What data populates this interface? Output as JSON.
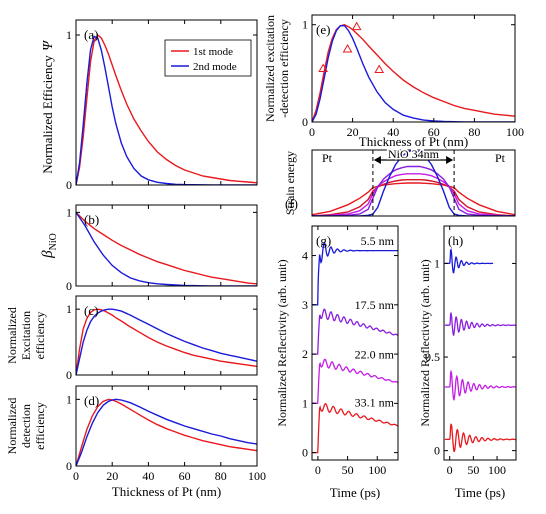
{
  "colors": {
    "red": "#e8191e",
    "blue": "#1a1ad9",
    "purple": "#8a1ee0",
    "magenta": "#c41ee6",
    "dark_red": "#d4142a"
  },
  "common": {
    "x_label": "Thickness of Pt (nm)",
    "time_label": "Time (ps)"
  },
  "chart_data": [
    {
      "id": "a",
      "type": "line",
      "panel_label": "(a)",
      "ylabel": "Normalized  Efficiency",
      "ylabel_symbol": "Ψ",
      "xlim": [
        0,
        100
      ],
      "ylim": [
        0,
        1.1
      ],
      "xticks": [
        "0",
        "20",
        "40",
        "60",
        "80",
        "100"
      ],
      "yticks": [
        "0",
        "1"
      ],
      "legend": {
        "placement": "top-right",
        "entries": [
          "1st mode",
          "2nd mode"
        ]
      },
      "x": [
        0,
        2,
        4,
        6,
        8,
        10,
        12,
        14,
        16,
        18,
        20,
        22,
        25,
        28,
        32,
        36,
        40,
        45,
        50,
        55,
        60,
        65,
        70,
        75,
        80,
        85,
        90,
        95,
        100
      ],
      "series": [
        {
          "name": "1st mode",
          "color": "red",
          "values": [
            0,
            0.12,
            0.32,
            0.58,
            0.82,
            0.96,
            1.0,
            0.98,
            0.93,
            0.87,
            0.8,
            0.73,
            0.63,
            0.54,
            0.44,
            0.36,
            0.29,
            0.22,
            0.17,
            0.13,
            0.1,
            0.08,
            0.06,
            0.05,
            0.04,
            0.03,
            0.025,
            0.02,
            0.015
          ]
        },
        {
          "name": "2nd mode",
          "color": "blue",
          "values": [
            0,
            0.15,
            0.4,
            0.68,
            0.9,
            0.99,
            0.98,
            0.9,
            0.78,
            0.65,
            0.52,
            0.41,
            0.28,
            0.19,
            0.11,
            0.06,
            0.035,
            0.018,
            0.01,
            0.005,
            0.003,
            0.002,
            0.001,
            0,
            0,
            0,
            0,
            0,
            0
          ]
        }
      ]
    },
    {
      "id": "b",
      "type": "line",
      "panel_label": "(b)",
      "ylabel": "β",
      "ylabel_sub": "NiO",
      "xlim": [
        0,
        100
      ],
      "ylim": [
        0,
        1.1
      ],
      "xticks": [
        "0",
        "20",
        "40",
        "60",
        "80",
        "100"
      ],
      "yticks": [
        "0",
        "1"
      ],
      "x": [
        0,
        5,
        10,
        15,
        20,
        25,
        30,
        35,
        40,
        45,
        50,
        55,
        60,
        65,
        70,
        75,
        80,
        85,
        90,
        95,
        100
      ],
      "series": [
        {
          "color": "red",
          "values": [
            1.0,
            0.88,
            0.78,
            0.7,
            0.62,
            0.55,
            0.49,
            0.43,
            0.38,
            0.33,
            0.29,
            0.25,
            0.21,
            0.18,
            0.15,
            0.12,
            0.1,
            0.08,
            0.06,
            0.04,
            0.03
          ]
        },
        {
          "color": "blue",
          "values": [
            1.0,
            0.82,
            0.6,
            0.42,
            0.28,
            0.18,
            0.11,
            0.07,
            0.045,
            0.03,
            0.02,
            0.013,
            0.008,
            0.005,
            0.003,
            0.002,
            0.001,
            0,
            0,
            0,
            0
          ]
        }
      ]
    },
    {
      "id": "c",
      "type": "line",
      "panel_label": "(c)",
      "ylabel_lines": [
        "Normalized",
        "Excitation",
        "efficiency"
      ],
      "xlim": [
        0,
        100
      ],
      "ylim": [
        0,
        1.2
      ],
      "xticks": [
        "0",
        "20",
        "40",
        "60",
        "80",
        "100"
      ],
      "yticks": [
        "0",
        "1"
      ],
      "x": [
        0,
        2,
        4,
        6,
        8,
        10,
        12,
        14,
        16,
        18,
        20,
        22,
        25,
        30,
        35,
        40,
        45,
        50,
        55,
        60,
        65,
        70,
        75,
        80,
        85,
        90,
        95,
        100
      ],
      "series": [
        {
          "color": "red",
          "values": [
            0,
            0.4,
            0.7,
            0.86,
            0.95,
            0.99,
            1.0,
            0.99,
            0.97,
            0.94,
            0.91,
            0.87,
            0.82,
            0.73,
            0.65,
            0.57,
            0.5,
            0.44,
            0.39,
            0.34,
            0.3,
            0.27,
            0.24,
            0.21,
            0.19,
            0.17,
            0.15,
            0.13
          ]
        },
        {
          "color": "blue",
          "values": [
            0,
            0.25,
            0.5,
            0.68,
            0.81,
            0.89,
            0.94,
            0.97,
            0.99,
            1.0,
            1.0,
            0.99,
            0.97,
            0.91,
            0.84,
            0.77,
            0.7,
            0.63,
            0.57,
            0.51,
            0.46,
            0.41,
            0.37,
            0.33,
            0.3,
            0.27,
            0.24,
            0.21
          ]
        }
      ]
    },
    {
      "id": "d",
      "type": "line",
      "panel_label": "(d)",
      "ylabel_lines": [
        "Normalized",
        "detection",
        "efficiency"
      ],
      "xlabel": "Thickness of Pt (nm)",
      "xlim": [
        0,
        100
      ],
      "ylim": [
        0,
        1.2
      ],
      "xticks": [
        "0",
        "20",
        "40",
        "60",
        "80",
        "100"
      ],
      "yticks": [
        "0",
        "1"
      ],
      "x": [
        0,
        3,
        6,
        9,
        12,
        15,
        18,
        20,
        22,
        25,
        30,
        35,
        40,
        45,
        50,
        55,
        60,
        65,
        70,
        75,
        80,
        85,
        90,
        95,
        100
      ],
      "series": [
        {
          "color": "red",
          "values": [
            0,
            0.28,
            0.55,
            0.75,
            0.89,
            0.97,
            1.0,
            0.99,
            0.97,
            0.93,
            0.85,
            0.77,
            0.69,
            0.62,
            0.56,
            0.51,
            0.46,
            0.42,
            0.38,
            0.35,
            0.32,
            0.29,
            0.27,
            0.25,
            0.23
          ]
        },
        {
          "color": "blue",
          "values": [
            0,
            0.2,
            0.44,
            0.64,
            0.8,
            0.91,
            0.97,
            0.99,
            1.0,
            0.99,
            0.95,
            0.89,
            0.82,
            0.76,
            0.7,
            0.65,
            0.6,
            0.56,
            0.52,
            0.48,
            0.45,
            0.41,
            0.38,
            0.35,
            0.33
          ]
        }
      ]
    },
    {
      "id": "e",
      "type": "line",
      "panel_label": "(e)",
      "ylabel_lines": [
        "Normalized  excitation",
        "-detection efficiency"
      ],
      "xlabel": "Thickness of Pt (nm)",
      "xlim": [
        0,
        100
      ],
      "ylim": [
        0,
        1.1
      ],
      "xticks": [
        "0",
        "20",
        "40",
        "60",
        "80",
        "100"
      ],
      "yticks": [
        "0",
        "1"
      ],
      "x": [
        0,
        2,
        4,
        6,
        8,
        10,
        12,
        14,
        16,
        18,
        20,
        22,
        25,
        28,
        32,
        36,
        40,
        45,
        50,
        55,
        60,
        65,
        70,
        75,
        80,
        85,
        90,
        95,
        100
      ],
      "series": [
        {
          "color": "red",
          "values": [
            0,
            0.12,
            0.3,
            0.52,
            0.72,
            0.86,
            0.95,
            0.99,
            1.0,
            0.98,
            0.95,
            0.91,
            0.85,
            0.78,
            0.69,
            0.6,
            0.52,
            0.43,
            0.36,
            0.3,
            0.25,
            0.21,
            0.17,
            0.14,
            0.12,
            0.1,
            0.08,
            0.07,
            0.06
          ]
        },
        {
          "color": "blue",
          "values": [
            0,
            0.08,
            0.24,
            0.45,
            0.66,
            0.83,
            0.94,
            0.99,
            0.99,
            0.94,
            0.86,
            0.76,
            0.6,
            0.46,
            0.31,
            0.2,
            0.13,
            0.07,
            0.04,
            0.02,
            0.01,
            0.005,
            0.003,
            0,
            0,
            0,
            0,
            0,
            0
          ]
        }
      ],
      "markers": {
        "color": "red",
        "shape": "triangle",
        "x": [
          5.5,
          17.5,
          22.0,
          33.1
        ],
        "y": [
          0.55,
          0.75,
          0.98,
          0.54
        ]
      }
    },
    {
      "id": "f",
      "type": "line",
      "panel_label": "(f)",
      "ylabel": "Strain energy",
      "region_labels": [
        "Pt",
        "NiO  34nm",
        "Pt"
      ],
      "xlim": [
        -85,
        85
      ],
      "ylim": [
        0,
        1
      ],
      "x": [
        -85,
        -70,
        -55,
        -45,
        -38,
        -34,
        -30,
        -25,
        -20,
        -15,
        -10,
        -5,
        0,
        5,
        10,
        15,
        20,
        25,
        30,
        34,
        38,
        45,
        55,
        70,
        85
      ],
      "series": [
        {
          "color": "red",
          "values": [
            0.02,
            0.07,
            0.17,
            0.27,
            0.36,
            0.43,
            0.45,
            0.47,
            0.48,
            0.49,
            0.495,
            0.5,
            0.5,
            0.5,
            0.495,
            0.49,
            0.48,
            0.47,
            0.45,
            0.43,
            0.36,
            0.27,
            0.17,
            0.07,
            0.02
          ]
        },
        {
          "color": "dark_red",
          "values": [
            0,
            0.02,
            0.06,
            0.14,
            0.25,
            0.38,
            0.44,
            0.48,
            0.51,
            0.53,
            0.545,
            0.55,
            0.55,
            0.55,
            0.545,
            0.53,
            0.51,
            0.48,
            0.44,
            0.38,
            0.25,
            0.14,
            0.06,
            0.02,
            0
          ]
        },
        {
          "color": "magenta",
          "values": [
            0,
            0.01,
            0.03,
            0.08,
            0.18,
            0.34,
            0.45,
            0.52,
            0.57,
            0.61,
            0.63,
            0.64,
            0.64,
            0.64,
            0.63,
            0.61,
            0.57,
            0.52,
            0.45,
            0.34,
            0.18,
            0.08,
            0.03,
            0.01,
            0
          ]
        },
        {
          "color": "purple",
          "values": [
            0,
            0,
            0.01,
            0.03,
            0.1,
            0.27,
            0.44,
            0.56,
            0.64,
            0.7,
            0.73,
            0.75,
            0.75,
            0.75,
            0.73,
            0.7,
            0.64,
            0.56,
            0.44,
            0.27,
            0.1,
            0.03,
            0.01,
            0,
            0
          ]
        },
        {
          "color": "blue",
          "values": [
            0,
            0,
            0,
            0,
            0.01,
            0.03,
            0.13,
            0.38,
            0.6,
            0.78,
            0.9,
            0.97,
            1.0,
            0.97,
            0.9,
            0.78,
            0.6,
            0.38,
            0.13,
            0.03,
            0.01,
            0,
            0,
            0,
            0
          ]
        }
      ]
    },
    {
      "id": "g",
      "type": "line",
      "panel_label": "(g)",
      "ylabel": "Normalized  Reflectivity  (arb. unit)",
      "xlabel": "Time (ps)",
      "xlim": [
        -10,
        135
      ],
      "ylim": [
        -0.15,
        4.6
      ],
      "xticks": [
        "0",
        "50",
        "100"
      ],
      "yticks": [
        "0",
        "1",
        "2",
        "3",
        "4"
      ],
      "traces": [
        {
          "label": "5.5 nm",
          "color": "blue",
          "offset": 3.0,
          "jump": 1.1,
          "amp": 0.35,
          "period": 11,
          "decay": 14,
          "slope": 0.0
        },
        {
          "label": "17.5  nm",
          "color": "purple",
          "offset": 2.0,
          "jump": 0.85,
          "amp": 0.12,
          "period": 11,
          "decay": 60,
          "slope": -0.0035
        },
        {
          "label": "22.0  nm",
          "color": "magenta",
          "offset": 1.0,
          "jump": 0.85,
          "amp": 0.1,
          "period": 12,
          "decay": 60,
          "slope": -0.0032
        },
        {
          "label": "33.1  nm",
          "color": "red",
          "offset": 0.0,
          "jump": 0.95,
          "amp": 0.1,
          "period": 13,
          "decay": 60,
          "slope": -0.003
        }
      ]
    },
    {
      "id": "h",
      "type": "line",
      "panel_label": "(h)",
      "ylabel": "Normalized  Reflectivity  (arb. unit)",
      "xlabel": "Time (ps)",
      "xlim": [
        -12,
        140
      ],
      "ylim": [
        -0.05,
        1.2
      ],
      "xticks": [
        "0",
        "50",
        "100"
      ],
      "yticks": [
        "0",
        "0.5",
        "1"
      ],
      "traces": [
        {
          "color": "blue",
          "offset": 1.0,
          "amp": 0.09,
          "period": 11,
          "decay": 14,
          "tmax": 92
        },
        {
          "color": "purple",
          "offset": 0.67,
          "amp": 0.07,
          "period": 11,
          "decay": 30,
          "tmax": 140
        },
        {
          "color": "magenta",
          "offset": 0.34,
          "amp": 0.09,
          "period": 12,
          "decay": 32,
          "tmax": 140
        },
        {
          "color": "red",
          "offset": 0.06,
          "amp": 0.09,
          "period": 13,
          "decay": 30,
          "tmax": 140
        }
      ]
    }
  ]
}
